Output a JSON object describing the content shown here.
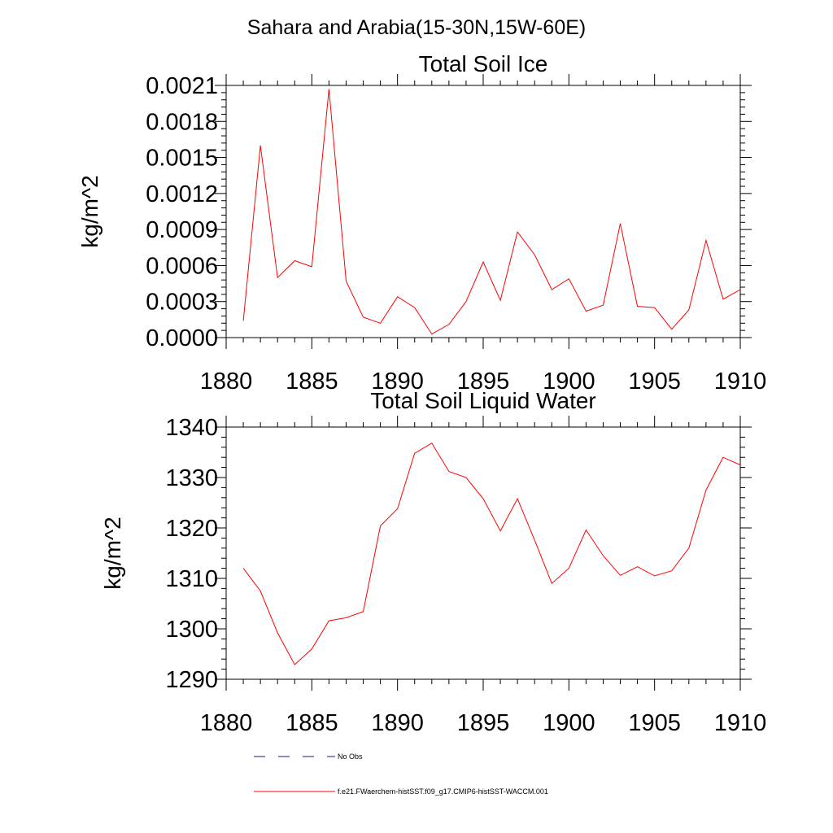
{
  "figure": {
    "title": "Sahara and Arabia(15-30N,15W-60E)"
  },
  "legend": [
    {
      "label": "No Obs",
      "style": "dashed",
      "color": "#1a1a8c"
    },
    {
      "label": "f.e21.FWaerchem-histSST.f09_g17.CMIP6-histSST-WACCM.001",
      "style": "solid",
      "color": "#ff0000"
    }
  ],
  "chart_data": [
    {
      "type": "line",
      "title": "Total Soil Ice",
      "ylabel": "kg/m^2",
      "xlabel": "",
      "xlim": [
        1880,
        1910
      ],
      "ylim": [
        0.0,
        0.0021
      ],
      "xticks": [
        "1880",
        "1885",
        "1890",
        "1895",
        "1900",
        "1905",
        "1910"
      ],
      "yticks": [
        "0.0000",
        "0.0003",
        "0.0006",
        "0.0009",
        "0.0012",
        "0.0015",
        "0.0018",
        "0.0021"
      ],
      "ytick_values": [
        0.0,
        0.0003,
        0.0006,
        0.0009,
        0.0012,
        0.0015,
        0.0018,
        0.0021
      ],
      "series": [
        {
          "name": "f.e21.FWaerchem-histSST.f09_g17.CMIP6-histSST-WACCM.001",
          "color": "#ff0000",
          "x": [
            1881,
            1882,
            1883,
            1884,
            1885,
            1886,
            1887,
            1888,
            1889,
            1890,
            1891,
            1892,
            1893,
            1894,
            1895,
            1896,
            1897,
            1898,
            1899,
            1900,
            1901,
            1902,
            1903,
            1904,
            1905,
            1906,
            1907,
            1908,
            1909,
            1910
          ],
          "y": [
            0.00014,
            0.0016,
            0.0005,
            0.00064,
            0.00059,
            0.00207,
            0.00047,
            0.00017,
            0.00012,
            0.00034,
            0.00025,
            3e-05,
            0.00011,
            0.0003,
            0.00063,
            0.00031,
            0.00088,
            0.00069,
            0.0004,
            0.00049,
            0.00022,
            0.00027,
            0.00095,
            0.00026,
            0.00025,
            7e-05,
            0.00023,
            0.00081,
            0.00032,
            0.0004
          ]
        }
      ]
    },
    {
      "type": "line",
      "title": "Total Soil Liquid Water",
      "ylabel": "kg/m^2",
      "xlabel": "",
      "xlim": [
        1880,
        1910
      ],
      "ylim": [
        1290,
        1340
      ],
      "xticks": [
        "1880",
        "1885",
        "1890",
        "1895",
        "1900",
        "1905",
        "1910"
      ],
      "yticks": [
        "1290",
        "1300",
        "1310",
        "1320",
        "1330",
        "1340"
      ],
      "ytick_values": [
        1290,
        1300,
        1310,
        1320,
        1330,
        1340
      ],
      "series": [
        {
          "name": "f.e21.FWaerchem-histSST.f09_g17.CMIP6-histSST-WACCM.001",
          "color": "#ff0000",
          "x": [
            1881,
            1882,
            1883,
            1884,
            1885,
            1886,
            1887,
            1888,
            1889,
            1890,
            1891,
            1892,
            1893,
            1894,
            1895,
            1896,
            1897,
            1898,
            1899,
            1900,
            1901,
            1902,
            1903,
            1904,
            1905,
            1906,
            1907,
            1908,
            1909,
            1910
          ],
          "y": [
            1312.0,
            1307.5,
            1299.2,
            1292.9,
            1296.0,
            1301.6,
            1302.2,
            1303.4,
            1320.4,
            1323.8,
            1334.8,
            1336.8,
            1331.2,
            1330.0,
            1325.8,
            1319.4,
            1325.8,
            1317.6,
            1309.0,
            1312.0,
            1319.6,
            1314.5,
            1310.6,
            1312.3,
            1310.5,
            1311.5,
            1316.0,
            1327.5,
            1334.0,
            1332.5
          ]
        }
      ]
    }
  ]
}
